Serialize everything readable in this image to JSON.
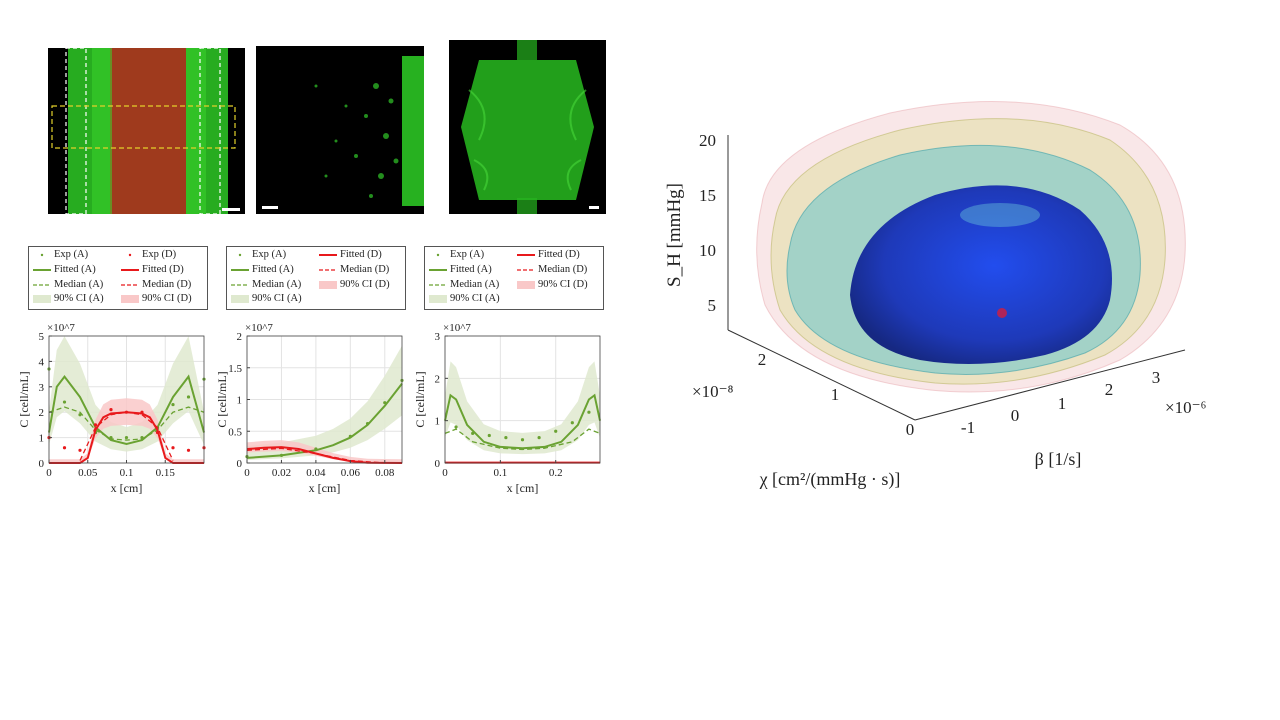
{
  "panels": {
    "legend_labels": [
      "Exp (A)",
      "Exp (D)",
      "Fitted (A)",
      "Fitted (D)",
      "Median (A)",
      "Median (D)",
      "90% CI (A)",
      "90% CI (D)"
    ],
    "colors": {
      "A": "#6aa232",
      "A_band": "#dfe9cf",
      "D": "#e8191c",
      "D_band": "#f9c8c8"
    }
  },
  "chart_data": [
    {
      "type": "line",
      "ylabel": "C [cell/mL]",
      "xlabel": "x [cm]",
      "exponent": "×10^7",
      "xlim": [
        0,
        0.2
      ],
      "ylim": [
        0,
        5
      ],
      "xticks": [
        "0",
        "0.05",
        "0.1",
        "0.15"
      ],
      "yticks": [
        "0",
        "1",
        "2",
        "3",
        "4",
        "5"
      ],
      "grid": true,
      "series": [
        {
          "name": "Fitted (A)",
          "x": [
            0,
            0.01,
            0.02,
            0.04,
            0.06,
            0.08,
            0.1,
            0.12,
            0.14,
            0.16,
            0.18,
            0.2
          ],
          "values": [
            1.2,
            3.0,
            3.4,
            2.6,
            1.4,
            0.9,
            0.75,
            0.9,
            1.4,
            2.6,
            3.4,
            1.2
          ]
        },
        {
          "name": "Median (A)",
          "x": [
            0,
            0.02,
            0.04,
            0.06,
            0.08,
            0.1,
            0.12,
            0.14,
            0.16,
            0.18,
            0.2
          ],
          "values": [
            2.0,
            2.2,
            2.0,
            1.3,
            0.95,
            0.9,
            0.95,
            1.3,
            2.0,
            2.2,
            2.0
          ]
        },
        {
          "name": "Exp (A)",
          "x": [
            0,
            0.02,
            0.04,
            0.06,
            0.08,
            0.1,
            0.12,
            0.14,
            0.16,
            0.18,
            0.2
          ],
          "values": [
            3.7,
            2.4,
            1.9,
            1.2,
            1.0,
            1.0,
            1.0,
            1.4,
            2.3,
            2.6,
            3.3
          ]
        },
        {
          "name": "Fitted (D)",
          "x": [
            0,
            0.04,
            0.05,
            0.06,
            0.07,
            0.08,
            0.1,
            0.12,
            0.13,
            0.14,
            0.15,
            0.16,
            0.2
          ],
          "values": [
            0,
            0,
            0.2,
            1.3,
            1.8,
            1.95,
            2.0,
            1.95,
            1.8,
            1.3,
            0.2,
            0,
            0
          ]
        },
        {
          "name": "Median (D)",
          "x": [
            0.04,
            0.06,
            0.08,
            0.1,
            0.12,
            0.14,
            0.16
          ],
          "values": [
            0.1,
            1.4,
            1.9,
            2.0,
            1.9,
            1.4,
            0.1
          ]
        },
        {
          "name": "Exp (D)",
          "x": [
            0,
            0.02,
            0.04,
            0.06,
            0.08,
            0.1,
            0.12,
            0.14,
            0.16,
            0.18,
            0.2
          ],
          "values": [
            1.0,
            0.6,
            0.5,
            1.5,
            2.1,
            2.0,
            2.0,
            1.2,
            0.6,
            0.5,
            0.6
          ]
        }
      ]
    },
    {
      "type": "line",
      "ylabel": "C [cell/mL]",
      "xlabel": "x [cm]",
      "exponent": "×10^7",
      "xlim": [
        0,
        0.09
      ],
      "ylim": [
        0,
        2
      ],
      "xticks": [
        "0",
        "0.02",
        "0.04",
        "0.06",
        "0.08"
      ],
      "yticks": [
        "0",
        "0.5",
        "1",
        "1.5",
        "2"
      ],
      "grid": true,
      "series": [
        {
          "name": "Fitted (A)",
          "x": [
            0,
            0.02,
            0.04,
            0.05,
            0.06,
            0.07,
            0.08,
            0.09
          ],
          "values": [
            0.08,
            0.12,
            0.2,
            0.28,
            0.4,
            0.6,
            0.9,
            1.25
          ]
        },
        {
          "name": "Exp (A)",
          "x": [
            0,
            0.02,
            0.04,
            0.06,
            0.07,
            0.08,
            0.09
          ],
          "values": [
            0.1,
            0.12,
            0.22,
            0.42,
            0.62,
            0.95,
            1.3
          ]
        },
        {
          "name": "Fitted (D)",
          "x": [
            0,
            0.01,
            0.02,
            0.03,
            0.04,
            0.05,
            0.06,
            0.07,
            0.09
          ],
          "values": [
            0.22,
            0.24,
            0.25,
            0.22,
            0.15,
            0.08,
            0.03,
            0.005,
            0
          ]
        },
        {
          "name": "Median (D)",
          "x": [
            0,
            0.02,
            0.04,
            0.06,
            0.08
          ],
          "values": [
            0.2,
            0.23,
            0.15,
            0.04,
            0.0
          ]
        }
      ]
    },
    {
      "type": "line",
      "ylabel": "C [cell/mL]",
      "xlabel": "x [cm]",
      "exponent": "×10^7",
      "xlim": [
        0,
        0.28
      ],
      "ylim": [
        0,
        3
      ],
      "xticks": [
        "0",
        "0.1",
        "0.2"
      ],
      "yticks": [
        "0",
        "1",
        "2",
        "3"
      ],
      "grid": true,
      "series": [
        {
          "name": "Fitted (A)",
          "x": [
            0,
            0.01,
            0.02,
            0.04,
            0.07,
            0.1,
            0.14,
            0.18,
            0.21,
            0.24,
            0.26,
            0.27,
            0.28
          ],
          "values": [
            1.0,
            1.6,
            1.5,
            0.9,
            0.5,
            0.38,
            0.35,
            0.38,
            0.5,
            0.9,
            1.5,
            1.6,
            1.0
          ]
        },
        {
          "name": "Median (A)",
          "x": [
            0,
            0.02,
            0.05,
            0.1,
            0.14,
            0.18,
            0.23,
            0.26,
            0.28
          ],
          "values": [
            0.7,
            0.8,
            0.5,
            0.35,
            0.32,
            0.35,
            0.5,
            0.8,
            0.7
          ]
        },
        {
          "name": "Exp (A)",
          "x": [
            0.02,
            0.05,
            0.08,
            0.11,
            0.14,
            0.17,
            0.2,
            0.23,
            0.26
          ],
          "values": [
            0.85,
            0.7,
            0.65,
            0.6,
            0.55,
            0.6,
            0.75,
            0.95,
            1.2
          ]
        },
        {
          "name": "Fitted (D)",
          "x": [
            0,
            0.28
          ],
          "values": [
            0.01,
            0.01
          ]
        }
      ]
    },
    {
      "type": "scatter",
      "subtype": "3d-isosurface",
      "zlabel": "S_H [mmHg]",
      "xlabel": "β [1/s]",
      "ylabel": "χ [cm²/(mmHg · s)]",
      "zticks": [
        "5",
        "10",
        "15",
        "20"
      ],
      "xticks": [
        "-1",
        "0",
        "1",
        "2",
        "3"
      ],
      "yticks": [
        "0",
        "1",
        "2"
      ],
      "x_exponent": "×10⁻⁶",
      "y_exponent": "×10⁻⁸",
      "surfaces": [
        "#f2c9cc",
        "#e3e0a8",
        "#7cc9c9",
        "#1f34c7"
      ]
    }
  ]
}
